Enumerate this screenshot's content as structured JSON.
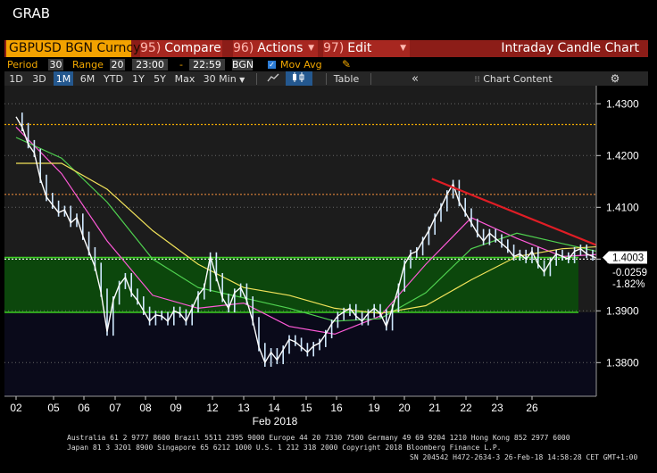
{
  "window": {
    "title": "GRAB"
  },
  "command_bar": {
    "security": "GBPUSD BGN Curncy",
    "compare_num": "95)",
    "compare_label": "Compare",
    "actions_num": "96)",
    "actions_label": "Actions",
    "edit_num": "97)",
    "edit_label": "Edit",
    "chart_name": "Intraday Candle Chart"
  },
  "settings": {
    "period_label": "Period",
    "period_value": "30",
    "range_label": "Range",
    "range_value": "20",
    "start_time": "23:00",
    "dash": "-",
    "end_time": "22:59",
    "source": "BGN",
    "mov_avg_checked": true,
    "mov_avg_label": "Mov Avg"
  },
  "toolbar": {
    "ranges": [
      "1D",
      "3D",
      "1M",
      "6M",
      "YTD",
      "1Y",
      "5Y",
      "Max"
    ],
    "active_range": "1M",
    "interval": "30 Min",
    "table_label": "Table",
    "content_label": "Chart Content"
  },
  "footer": {
    "line1": "Australia 61 2 9777 8600 Brazil 5511 2395 9000 Europe 44 20 7330 7500 Germany 49 69 9204 1210 Hong Kong 852 2977 6000",
    "line2": "Japan 81 3 3201 8900        Singapore 65 6212 1000       U.S. 1 212 318 2000            Copyright 2018 Bloomberg Finance L.P.",
    "line3": "SN 204542 H472-2634-3 26-Feb-18 14:58:28 CET  GMT+1:00"
  },
  "chart_data": {
    "type": "candlestick",
    "x_tick_labels": [
      "02",
      "05",
      "06",
      "07",
      "08",
      "09",
      "12",
      "13",
      "14",
      "15",
      "16",
      "19",
      "20",
      "21",
      "22",
      "23",
      "26"
    ],
    "x_axis_month": "Feb 2018",
    "ylim": [
      1.3735,
      1.4335
    ],
    "y_tick_labels": [
      "1.4300",
      "1.4200",
      "1.4100",
      "1.4000",
      "1.3900",
      "1.3800"
    ],
    "y_ticks": [
      1.43,
      1.42,
      1.41,
      1.4,
      1.39,
      1.38
    ],
    "price_series": {
      "color": "#ffffff",
      "points": [
        [
          0.0,
          1.4275
        ],
        [
          0.2,
          1.4255
        ],
        [
          0.4,
          1.4222
        ],
        [
          0.6,
          1.4205
        ],
        [
          0.8,
          1.4155
        ],
        [
          1.0,
          1.412
        ],
        [
          1.2,
          1.4105
        ],
        [
          1.4,
          1.409
        ],
        [
          1.6,
          1.4095
        ],
        [
          1.8,
          1.407
        ],
        [
          2.0,
          1.408
        ],
        [
          2.2,
          1.4045
        ],
        [
          2.4,
          1.4015
        ],
        [
          2.6,
          1.3985
        ],
        [
          2.8,
          1.3935
        ],
        [
          3.0,
          1.386
        ],
        [
          3.2,
          1.392
        ],
        [
          3.4,
          1.395
        ],
        [
          3.6,
          1.3965
        ],
        [
          3.8,
          1.3935
        ],
        [
          4.0,
          1.392
        ],
        [
          4.2,
          1.39
        ],
        [
          4.4,
          1.388
        ],
        [
          4.6,
          1.3892
        ],
        [
          4.8,
          1.389
        ],
        [
          5.0,
          1.388
        ],
        [
          5.2,
          1.39
        ],
        [
          5.4,
          1.3895
        ],
        [
          5.6,
          1.388
        ],
        [
          5.8,
          1.3905
        ],
        [
          6.0,
          1.393
        ],
        [
          6.2,
          1.3945
        ],
        [
          6.4,
          1.4005
        ],
        [
          6.6,
          1.3965
        ],
        [
          6.8,
          1.3925
        ],
        [
          7.0,
          1.3905
        ],
        [
          7.2,
          1.3935
        ],
        [
          7.4,
          1.3945
        ],
        [
          7.6,
          1.392
        ],
        [
          7.8,
          1.388
        ],
        [
          8.0,
          1.383
        ],
        [
          8.2,
          1.38
        ],
        [
          8.4,
          1.382
        ],
        [
          8.6,
          1.3805
        ],
        [
          8.8,
          1.3825
        ],
        [
          9.0,
          1.3845
        ],
        [
          9.2,
          1.384
        ],
        [
          9.4,
          1.383
        ],
        [
          9.6,
          1.382
        ],
        [
          9.8,
          1.3832
        ],
        [
          10.0,
          1.3838
        ],
        [
          10.2,
          1.3855
        ],
        [
          10.4,
          1.3875
        ],
        [
          10.6,
          1.389
        ],
        [
          10.8,
          1.3898
        ],
        [
          11.0,
          1.3905
        ],
        [
          11.2,
          1.389
        ],
        [
          11.4,
          1.388
        ],
        [
          11.6,
          1.3895
        ],
        [
          11.8,
          1.3905
        ],
        [
          12.0,
          1.3895
        ],
        [
          12.2,
          1.387
        ],
        [
          12.4,
          1.3905
        ],
        [
          12.6,
          1.3945
        ],
        [
          12.8,
          1.399
        ],
        [
          13.0,
          1.401
        ],
        [
          13.2,
          1.4015
        ],
        [
          13.4,
          1.4035
        ],
        [
          13.6,
          1.4055
        ],
        [
          13.8,
          1.408
        ],
        [
          14.0,
          1.41
        ],
        [
          14.2,
          1.4125
        ],
        [
          14.4,
          1.4145
        ],
        [
          14.6,
          1.411
        ],
        [
          14.8,
          1.409
        ],
        [
          15.0,
          1.407
        ],
        [
          15.2,
          1.405
        ],
        [
          15.4,
          1.4035
        ],
        [
          15.6,
          1.405
        ],
        [
          15.8,
          1.404
        ],
        [
          16.0,
          1.403
        ],
        [
          16.2,
          1.402
        ],
        [
          16.4,
          1.4005
        ],
        [
          16.6,
          1.401
        ],
        [
          16.8,
          1.4
        ],
        [
          17.0,
          1.4015
        ],
        [
          17.2,
          1.399
        ],
        [
          17.4,
          1.3975
        ],
        [
          17.6,
          1.3995
        ],
        [
          17.8,
          1.401
        ],
        [
          18.0,
          1.4005
        ],
        [
          18.2,
          1.4
        ],
        [
          18.4,
          1.4015
        ],
        [
          18.6,
          1.402
        ],
        [
          18.8,
          1.401
        ],
        [
          19.0,
          1.4005
        ],
        [
          19.2,
          1.4
        ],
        [
          19.4,
          1.399
        ],
        [
          19.6,
          1.3975
        ],
        [
          19.8,
          1.396
        ],
        [
          20.0,
          1.3935
        ],
        [
          20.2,
          1.392
        ],
        [
          20.4,
          1.3945
        ],
        [
          20.6,
          1.3925
        ],
        [
          20.8,
          1.389
        ],
        [
          21.0,
          1.388
        ],
        [
          21.2,
          1.3895
        ],
        [
          21.4,
          1.392
        ],
        [
          21.6,
          1.394
        ],
        [
          21.8,
          1.3935
        ],
        [
          22.0,
          1.3925
        ],
        [
          22.2,
          1.3945
        ],
        [
          22.4,
          1.396
        ],
        [
          22.6,
          1.3955
        ],
        [
          22.8,
          1.396
        ],
        [
          23.0,
          1.3955
        ],
        [
          23.2,
          1.3985
        ],
        [
          23.4,
          1.3955
        ],
        [
          23.6,
          1.396
        ],
        [
          23.8,
          1.3965
        ],
        [
          24.0,
          1.398
        ],
        [
          24.2,
          1.3985
        ],
        [
          24.4,
          1.402
        ],
        [
          24.6,
          1.4045
        ],
        [
          24.8,
          1.406
        ],
        [
          25.0,
          1.4035
        ],
        [
          25.2,
          1.4003
        ]
      ]
    },
    "moving_averages": [
      {
        "color": "#ff5ad8",
        "points": [
          [
            0,
            1.4255
          ],
          [
            1.5,
            1.4165
          ],
          [
            3,
            1.4035
          ],
          [
            4.5,
            1.393
          ],
          [
            6,
            1.3905
          ],
          [
            7.5,
            1.3915
          ],
          [
            9,
            1.387
          ],
          [
            10.5,
            1.3855
          ],
          [
            12,
            1.389
          ],
          [
            13.5,
            1.399
          ],
          [
            15,
            1.408
          ],
          [
            16.5,
            1.404
          ],
          [
            18,
            1.4005
          ],
          [
            19.5,
            1.401
          ],
          [
            21,
            1.3935
          ],
          [
            22.5,
            1.392
          ],
          [
            24,
            1.3955
          ],
          [
            25.2,
            1.397
          ]
        ]
      },
      {
        "color": "#4fd14f",
        "points": [
          [
            0,
            1.4235
          ],
          [
            1.5,
            1.4195
          ],
          [
            3,
            1.411
          ],
          [
            4.5,
            1.4
          ],
          [
            6,
            1.3945
          ],
          [
            7.5,
            1.3925
          ],
          [
            9,
            1.3905
          ],
          [
            10.5,
            1.388
          ],
          [
            12,
            1.3885
          ],
          [
            13.5,
            1.3935
          ],
          [
            15,
            1.402
          ],
          [
            16.5,
            1.405
          ],
          [
            18,
            1.403
          ],
          [
            19.5,
            1.401
          ],
          [
            21,
            1.3985
          ],
          [
            22.5,
            1.3955
          ],
          [
            24,
            1.395
          ],
          [
            25.2,
            1.3965
          ]
        ]
      },
      {
        "color": "#f2e35a",
        "points": [
          [
            0,
            1.4185
          ],
          [
            1.5,
            1.4185
          ],
          [
            3,
            1.4135
          ],
          [
            4.5,
            1.4055
          ],
          [
            6,
            1.399
          ],
          [
            7.5,
            1.3945
          ],
          [
            9,
            1.393
          ],
          [
            10.5,
            1.3905
          ],
          [
            12,
            1.3895
          ],
          [
            13.5,
            1.391
          ],
          [
            15,
            1.396
          ],
          [
            16.5,
            1.4005
          ],
          [
            18,
            1.402
          ],
          [
            19.5,
            1.4025
          ],
          [
            21,
            1.401
          ],
          [
            22.5,
            1.3985
          ],
          [
            24,
            1.3975
          ],
          [
            25.2,
            1.398
          ]
        ]
      }
    ],
    "reference_lines": [
      {
        "y": 1.426,
        "style": "dotted",
        "color": "#f4a900"
      },
      {
        "y": 1.4125,
        "style": "dotted",
        "color": "#e0843a"
      },
      {
        "y": 1.4,
        "style": "dotted",
        "color": "#ffffff"
      }
    ],
    "support_zone": {
      "y_top": 1.4003,
      "y_bottom": 1.3897,
      "fill": "#0c4a0c",
      "edge": "#3ccd22"
    },
    "trend_line": {
      "color": "#e01d25",
      "start": [
        13.7,
        1.4155
      ],
      "end": [
        30.0,
        1.377
      ]
    },
    "value_labels": [
      {
        "text": "1.4003",
        "y": 1.4003,
        "bg": "#ffffff",
        "fg": "#000000"
      },
      {
        "text": "-0.0259",
        "y": 1.3975,
        "bg": "#000000",
        "fg": "#ffffff"
      },
      {
        "text": "-1.82%",
        "y": 1.3952,
        "bg": "#000000",
        "fg": "#ffffff"
      }
    ]
  }
}
